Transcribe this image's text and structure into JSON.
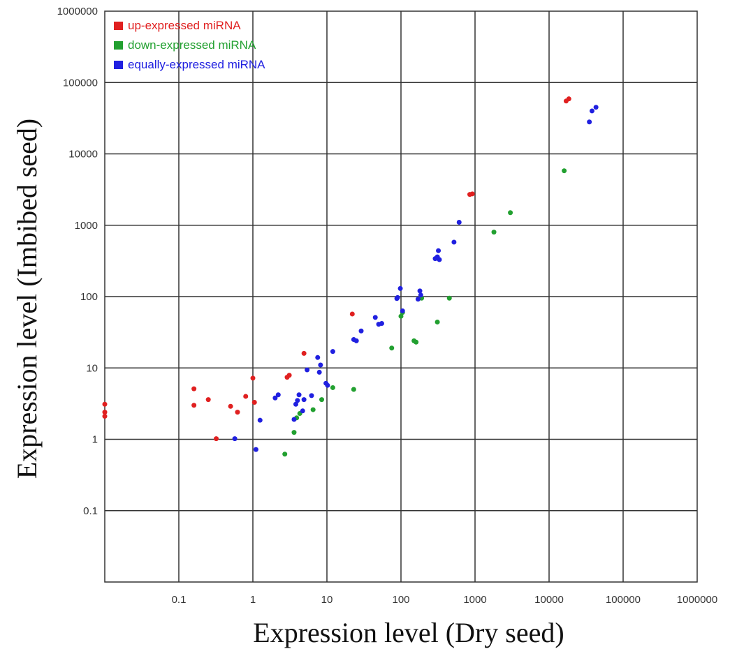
{
  "chart_data": {
    "type": "scatter",
    "title": "",
    "xlabel": "Expression level (Dry seed)",
    "ylabel": "Expression level (Imbibed seed)",
    "xscale": "log",
    "yscale": "log",
    "xlim": [
      0.01,
      1000000
    ],
    "ylim": [
      0.01,
      1000000
    ],
    "x_ticks": [
      "0.1",
      "1",
      "10",
      "100",
      "1000",
      "10000",
      "100000",
      "1000000"
    ],
    "y_ticks": [
      "0.1",
      "1",
      "10",
      "100",
      "1000",
      "10000",
      "100000",
      "1000000"
    ],
    "grid": true,
    "legend_position": "top-left",
    "series": [
      {
        "name": "up-expressed miRNA",
        "color": "#e02020",
        "points": [
          [
            0.01,
            3.1
          ],
          [
            0.01,
            2.4
          ],
          [
            0.01,
            2.1
          ],
          [
            0.16,
            5.1
          ],
          [
            0.16,
            3.0
          ],
          [
            0.25,
            3.6
          ],
          [
            0.32,
            1.02
          ],
          [
            0.5,
            2.9
          ],
          [
            0.62,
            2.4
          ],
          [
            0.8,
            4.0
          ],
          [
            1.0,
            7.2
          ],
          [
            1.05,
            3.3
          ],
          [
            2.9,
            7.4
          ],
          [
            3.1,
            7.9
          ],
          [
            4.9,
            16
          ],
          [
            22,
            57
          ],
          [
            850,
            2700
          ],
          [
            920,
            2750
          ],
          [
            17000,
            55000
          ],
          [
            18500,
            59000
          ]
        ]
      },
      {
        "name": "down-expressed miRNA",
        "color": "#22a030",
        "points": [
          [
            2.7,
            0.62
          ],
          [
            3.6,
            1.25
          ],
          [
            3.9,
            2.0
          ],
          [
            4.3,
            2.3
          ],
          [
            6.5,
            2.6
          ],
          [
            8.5,
            3.6
          ],
          [
            12,
            5.3
          ],
          [
            23,
            5.0
          ],
          [
            75,
            19
          ],
          [
            100,
            53
          ],
          [
            105,
            60
          ],
          [
            150,
            24
          ],
          [
            160,
            23
          ],
          [
            190,
            95
          ],
          [
            310,
            44
          ],
          [
            450,
            95
          ],
          [
            1800,
            800
          ],
          [
            3000,
            1500
          ],
          [
            16000,
            5800
          ]
        ]
      },
      {
        "name": "equally-expressed miRNA",
        "color": "#2020e0",
        "points": [
          [
            0.57,
            1.02
          ],
          [
            1.1,
            0.72
          ],
          [
            1.25,
            1.85
          ],
          [
            2.0,
            3.8
          ],
          [
            2.2,
            4.2
          ],
          [
            3.6,
            1.9
          ],
          [
            3.8,
            3.1
          ],
          [
            4.0,
            3.5
          ],
          [
            4.2,
            4.2
          ],
          [
            4.7,
            2.5
          ],
          [
            4.9,
            3.6
          ],
          [
            5.4,
            9.4
          ],
          [
            6.2,
            4.1
          ],
          [
            7.5,
            14
          ],
          [
            7.9,
            8.7
          ],
          [
            8.2,
            11
          ],
          [
            9.7,
            6.1
          ],
          [
            10.2,
            5.7
          ],
          [
            12,
            17
          ],
          [
            23,
            25
          ],
          [
            25,
            24
          ],
          [
            29,
            33
          ],
          [
            45,
            51
          ],
          [
            50,
            41
          ],
          [
            55,
            42
          ],
          [
            88,
            94
          ],
          [
            90,
            97
          ],
          [
            98,
            130
          ],
          [
            105,
            63
          ],
          [
            170,
            92
          ],
          [
            180,
            120
          ],
          [
            185,
            105
          ],
          [
            290,
            340
          ],
          [
            310,
            360
          ],
          [
            320,
            440
          ],
          [
            330,
            330
          ],
          [
            520,
            580
          ],
          [
            610,
            1100
          ],
          [
            35000,
            28000
          ],
          [
            38000,
            40000
          ],
          [
            43000,
            45000
          ]
        ]
      }
    ]
  }
}
